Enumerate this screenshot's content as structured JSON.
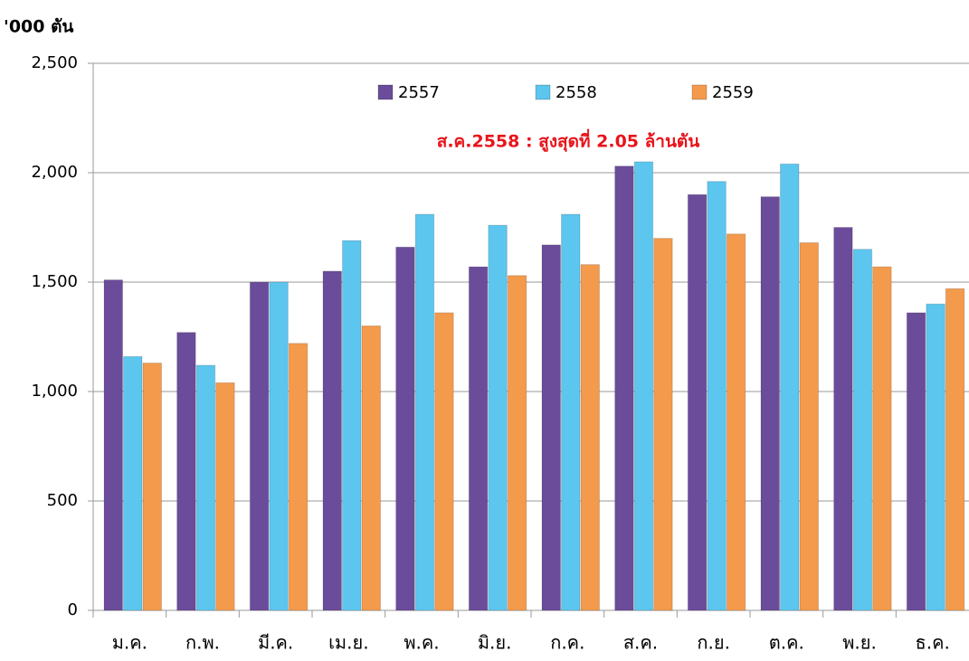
{
  "chart_data": {
    "type": "bar",
    "y_axis_label": "'000 ตัน",
    "annotation": "ส.ค.2558 : สูงสุดที่ 2.05 ล้านตัน",
    "categories": [
      "ม.ค.",
      "ก.พ.",
      "มี.ค.",
      "เม.ย.",
      "พ.ค.",
      "มิ.ย.",
      "ก.ค.",
      "ส.ค.",
      "ก.ย.",
      "ต.ค.",
      "พ.ย.",
      "ธ.ค."
    ],
    "series": [
      {
        "name": "2557",
        "color": "#6b4c9a",
        "values": [
          1510,
          1270,
          1500,
          1550,
          1660,
          1570,
          1670,
          2030,
          1900,
          1890,
          1750,
          1360
        ]
      },
      {
        "name": "2558",
        "color": "#5cc6ee",
        "values": [
          1160,
          1120,
          1500,
          1690,
          1810,
          1760,
          1810,
          2050,
          1960,
          2040,
          1650,
          1400
        ]
      },
      {
        "name": "2559",
        "color": "#f39a4c",
        "values": [
          1130,
          1040,
          1220,
          1300,
          1360,
          1530,
          1580,
          1700,
          1720,
          1680,
          1570,
          1470
        ]
      }
    ],
    "ylim": [
      0,
      2500
    ],
    "yticks": [
      0,
      500,
      {
        "value": 1000,
        "label": "1,000"
      },
      {
        "value": 1500,
        "label": "1,500"
      },
      {
        "value": 2000,
        "label": "2,000"
      },
      {
        "value": 2500,
        "label": "2,500"
      }
    ],
    "grid": true
  }
}
